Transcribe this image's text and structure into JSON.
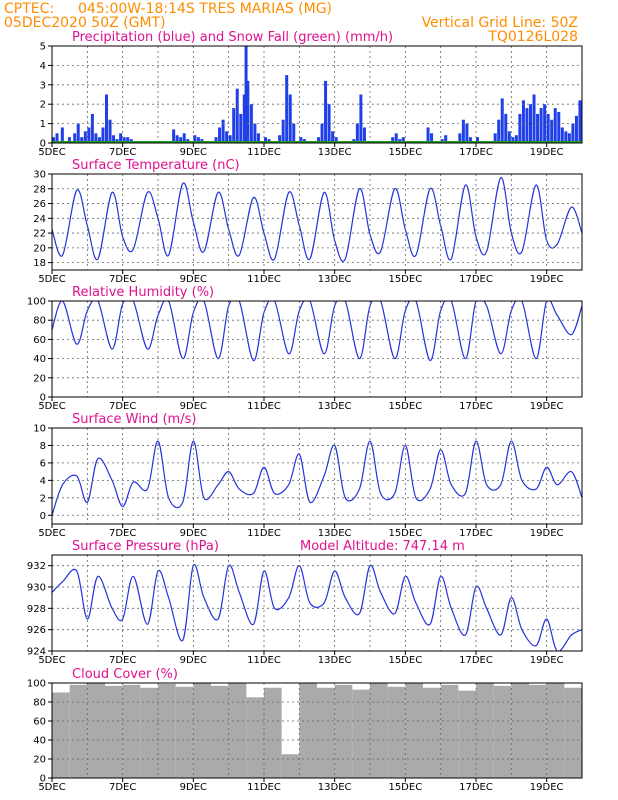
{
  "header": {
    "source": "CPTEC:",
    "location": "045:00W-18:14S  TRES MARIAS (MG)",
    "run": "05DEC2020 50Z (GMT)",
    "grid_note": "Vertical Grid Line: 50Z",
    "code": "TQ0126L028"
  },
  "colors": {
    "header": "#ff8c00",
    "title": "#e0108f",
    "precip": "#1f3fe8",
    "snow": "#1e9e1e",
    "line": "#2233dd",
    "cloud": "#aaaaaa"
  },
  "chart_data": [
    {
      "type": "bar",
      "title": "Precipitation (blue) and Snow Fall (green) (mm/h)",
      "x_ticks": [
        "5DEC",
        "7DEC",
        "9DEC",
        "11DEC",
        "13DEC",
        "15DEC",
        "17DEC",
        "19DEC"
      ],
      "ylim": [
        0,
        5
      ],
      "y_ticks": [
        0,
        1,
        2,
        3,
        4,
        5
      ],
      "x": [
        5.0,
        5.1,
        5.25,
        5.45,
        5.6,
        5.7,
        5.8,
        5.9,
        6.0,
        6.1,
        6.2,
        6.3,
        6.4,
        6.5,
        6.6,
        6.7,
        6.8,
        6.9,
        7.0,
        7.1,
        7.2,
        8.4,
        8.5,
        8.6,
        8.7,
        8.8,
        9.0,
        9.1,
        9.2,
        9.6,
        9.7,
        9.8,
        9.9,
        10.0,
        10.1,
        10.2,
        10.3,
        10.4,
        10.45,
        10.5,
        10.6,
        10.7,
        10.8,
        11.0,
        11.1,
        11.4,
        11.5,
        11.6,
        11.7,
        11.8,
        12.0,
        12.1,
        12.5,
        12.6,
        12.7,
        12.8,
        12.9,
        13.0,
        13.5,
        13.6,
        13.7,
        13.8,
        14.6,
        14.7,
        14.8,
        14.9,
        15.6,
        15.7,
        16.0,
        16.1,
        16.5,
        16.6,
        16.7,
        16.8,
        17.0,
        17.5,
        17.6,
        17.7,
        17.8,
        17.9,
        18.0,
        18.1,
        18.2,
        18.3,
        18.4,
        18.5,
        18.6,
        18.7,
        18.8,
        18.9,
        19.0,
        19.1,
        19.2,
        19.3,
        19.4,
        19.5,
        19.6,
        19.7,
        19.8,
        19.9
      ],
      "precip": [
        0.3,
        0.5,
        0.8,
        0.3,
        0.5,
        1.0,
        0.3,
        0.6,
        0.8,
        1.5,
        0.5,
        0.3,
        0.8,
        2.5,
        1.2,
        0.4,
        0.2,
        0.5,
        0.3,
        0.3,
        0.2,
        0.7,
        0.4,
        0.3,
        0.5,
        0.2,
        0.4,
        0.3,
        0.2,
        0.3,
        0.8,
        1.2,
        0.6,
        0.4,
        1.8,
        2.8,
        1.5,
        2.5,
        5.0,
        3.2,
        2.0,
        1.0,
        0.5,
        0.3,
        0.2,
        0.4,
        1.2,
        3.5,
        2.5,
        1.0,
        0.3,
        0.2,
        0.3,
        1.0,
        3.2,
        2.0,
        0.6,
        0.3,
        0.2,
        1.0,
        2.5,
        0.8,
        0.3,
        0.5,
        0.2,
        0.3,
        0.8,
        0.5,
        0.2,
        0.4,
        0.5,
        1.2,
        1.0,
        0.3,
        0.3,
        0.5,
        1.2,
        2.3,
        1.5,
        0.6,
        0.3,
        0.4,
        1.5,
        2.2,
        1.8,
        2.0,
        2.5,
        1.5,
        1.8,
        2.0,
        1.5,
        1.2,
        1.8,
        1.6,
        0.8,
        0.6,
        0.5,
        1.0,
        1.4,
        2.2
      ],
      "snow": [
        0,
        0,
        0,
        0,
        0,
        0,
        0,
        0,
        0,
        0,
        0,
        0,
        0,
        0,
        0,
        0,
        0,
        0,
        0,
        0,
        0,
        0,
        0,
        0,
        0,
        0,
        0,
        0,
        0,
        0,
        0,
        0,
        0,
        0,
        0,
        0,
        0,
        0,
        0,
        0,
        0,
        0,
        0,
        0,
        0,
        0,
        0,
        0,
        0,
        0,
        0,
        0,
        0,
        0,
        0,
        0,
        0,
        0,
        0,
        0,
        0,
        0,
        0,
        0,
        0,
        0,
        0,
        0,
        0,
        0,
        0,
        0,
        0,
        0,
        0,
        0,
        0,
        0,
        0,
        0,
        0,
        0,
        0,
        0,
        0,
        0,
        0,
        0,
        0,
        0,
        0,
        0,
        0,
        0,
        0,
        0,
        0,
        0,
        0,
        0
      ]
    },
    {
      "type": "line",
      "title": "Surface Temperature (nC)",
      "x_ticks": [
        "5DEC",
        "7DEC",
        "9DEC",
        "11DEC",
        "13DEC",
        "15DEC",
        "17DEC",
        "19DEC"
      ],
      "ylim": [
        17,
        30
      ],
      "y_ticks": [
        18,
        20,
        22,
        24,
        26,
        28,
        30
      ],
      "x": [
        5.0,
        5.3,
        5.7,
        6.0,
        6.3,
        6.7,
        7.0,
        7.3,
        7.7,
        8.0,
        8.3,
        8.7,
        9.0,
        9.3,
        9.7,
        10.0,
        10.3,
        10.7,
        11.0,
        11.3,
        11.7,
        12.0,
        12.3,
        12.7,
        13.0,
        13.3,
        13.7,
        14.0,
        14.3,
        14.7,
        15.0,
        15.3,
        15.7,
        16.0,
        16.3,
        16.7,
        17.0,
        17.3,
        17.7,
        18.0,
        18.3,
        18.7,
        19.0,
        19.3,
        19.7,
        20.0
      ],
      "values": [
        22.5,
        19.0,
        27.8,
        23.0,
        18.5,
        27.5,
        21.5,
        19.8,
        27.5,
        24.0,
        19.0,
        28.7,
        23.5,
        19.5,
        27.5,
        22.5,
        19.0,
        26.8,
        22.0,
        18.5,
        27.5,
        23.0,
        18.5,
        27.5,
        21.0,
        18.5,
        28.0,
        21.8,
        19.5,
        28.0,
        22.5,
        19.0,
        28.0,
        23.0,
        18.5,
        28.5,
        21.5,
        19.5,
        29.5,
        22.0,
        19.5,
        28.5,
        21.0,
        20.5,
        25.5,
        22.0
      ]
    },
    {
      "type": "line",
      "title": "Relative Humidity (%)",
      "x_ticks": [
        "5DEC",
        "7DEC",
        "9DEC",
        "11DEC",
        "13DEC",
        "15DEC",
        "17DEC",
        "19DEC"
      ],
      "ylim": [
        0,
        100
      ],
      "y_ticks": [
        0,
        20,
        40,
        60,
        80,
        100
      ],
      "x": [
        5.0,
        5.3,
        5.7,
        6.0,
        6.3,
        6.7,
        7.0,
        7.3,
        7.7,
        8.0,
        8.3,
        8.7,
        9.0,
        9.3,
        9.7,
        10.0,
        10.3,
        10.7,
        11.0,
        11.3,
        11.7,
        12.0,
        12.3,
        12.7,
        13.0,
        13.3,
        13.7,
        14.0,
        14.3,
        14.7,
        15.0,
        15.3,
        15.7,
        16.0,
        16.3,
        16.7,
        17.0,
        17.3,
        17.7,
        18.0,
        18.3,
        18.7,
        19.0,
        19.3,
        19.7,
        20.0
      ],
      "values": [
        70,
        100,
        55,
        90,
        100,
        50,
        97,
        100,
        50,
        85,
        100,
        40,
        88,
        100,
        40,
        95,
        100,
        38,
        88,
        100,
        45,
        90,
        100,
        45,
        95,
        100,
        40,
        95,
        100,
        40,
        90,
        100,
        38,
        90,
        100,
        40,
        100,
        95,
        45,
        90,
        100,
        40,
        100,
        85,
        65,
        95
      ]
    },
    {
      "type": "line",
      "title": "Surface Wind (m/s)",
      "x_ticks": [
        "5DEC",
        "7DEC",
        "9DEC",
        "11DEC",
        "13DEC",
        "15DEC",
        "17DEC",
        "19DEC"
      ],
      "ylim": [
        -1,
        10
      ],
      "y_ticks": [
        0,
        2,
        4,
        6,
        8,
        10
      ],
      "x": [
        5.0,
        5.3,
        5.7,
        6.0,
        6.3,
        6.7,
        7.0,
        7.3,
        7.7,
        8.0,
        8.3,
        8.7,
        9.0,
        9.3,
        9.7,
        10.0,
        10.3,
        10.7,
        11.0,
        11.3,
        11.7,
        12.0,
        12.3,
        12.7,
        13.0,
        13.3,
        13.7,
        14.0,
        14.3,
        14.7,
        15.0,
        15.3,
        15.7,
        16.0,
        16.3,
        16.7,
        17.0,
        17.3,
        17.7,
        18.0,
        18.3,
        18.7,
        19.0,
        19.3,
        19.7,
        20.0
      ],
      "values": [
        0.0,
        3.5,
        4.5,
        1.5,
        6.5,
        4.0,
        1.0,
        3.8,
        3.0,
        8.5,
        2.0,
        1.5,
        8.5,
        2.0,
        3.5,
        5.0,
        3.0,
        2.5,
        5.5,
        2.5,
        3.5,
        7.0,
        1.5,
        4.5,
        8.0,
        2.0,
        3.0,
        8.5,
        2.5,
        2.5,
        8.0,
        2.0,
        3.0,
        7.5,
        3.5,
        2.5,
        8.5,
        3.5,
        3.5,
        8.5,
        4.0,
        3.0,
        5.5,
        3.5,
        5.0,
        2.0
      ]
    },
    {
      "type": "line",
      "title": "Surface Pressure (hPa)",
      "annotation": "Model Altitude: 747.14 m",
      "x_ticks": [
        "5DEC",
        "7DEC",
        "9DEC",
        "11DEC",
        "13DEC",
        "15DEC",
        "17DEC",
        "19DEC"
      ],
      "ylim": [
        924,
        933
      ],
      "y_ticks": [
        924,
        926,
        928,
        930,
        932
      ],
      "x": [
        5.0,
        5.3,
        5.7,
        6.0,
        6.3,
        6.7,
        7.0,
        7.3,
        7.7,
        8.0,
        8.3,
        8.7,
        9.0,
        9.3,
        9.7,
        10.0,
        10.3,
        10.7,
        11.0,
        11.3,
        11.7,
        12.0,
        12.3,
        12.7,
        13.0,
        13.3,
        13.7,
        14.0,
        14.3,
        14.7,
        15.0,
        15.3,
        15.7,
        16.0,
        16.3,
        16.7,
        17.0,
        17.3,
        17.7,
        18.0,
        18.3,
        18.7,
        19.0,
        19.3,
        19.7,
        20.0
      ],
      "values": [
        929.5,
        930.5,
        931.5,
        927.0,
        931.0,
        928.0,
        927.0,
        931.0,
        926.5,
        931.5,
        929.0,
        925.0,
        932.0,
        929.0,
        927.0,
        932.0,
        929.5,
        926.5,
        931.5,
        928.0,
        929.0,
        932.0,
        928.5,
        928.5,
        931.5,
        929.0,
        927.5,
        932.0,
        929.5,
        927.5,
        931.0,
        928.5,
        926.5,
        931.0,
        928.0,
        925.5,
        930.0,
        928.0,
        925.5,
        929.0,
        926.0,
        924.5,
        927.0,
        924.0,
        925.5,
        926.0
      ]
    },
    {
      "type": "bar",
      "title": "Cloud Cover (%)",
      "x_ticks": [
        "5DEC",
        "7DEC",
        "9DEC",
        "11DEC",
        "13DEC",
        "15DEC",
        "17DEC",
        "19DEC"
      ],
      "ylim": [
        0,
        100
      ],
      "y_ticks": [
        0,
        20,
        40,
        60,
        80,
        100
      ],
      "x": [
        5.0,
        5.5,
        6.0,
        6.5,
        7.0,
        7.5,
        8.0,
        8.5,
        9.0,
        9.5,
        10.0,
        10.5,
        11.0,
        11.5,
        12.0,
        12.5,
        13.0,
        13.5,
        14.0,
        14.5,
        15.0,
        15.5,
        16.0,
        16.5,
        17.0,
        17.5,
        18.0,
        18.5,
        19.0,
        19.5
      ],
      "values": [
        90,
        98,
        100,
        97,
        98,
        95,
        99,
        96,
        100,
        97,
        100,
        85,
        95,
        25,
        100,
        95,
        98,
        93,
        100,
        96,
        100,
        95,
        98,
        92,
        100,
        97,
        100,
        98,
        100,
        95
      ]
    }
  ]
}
